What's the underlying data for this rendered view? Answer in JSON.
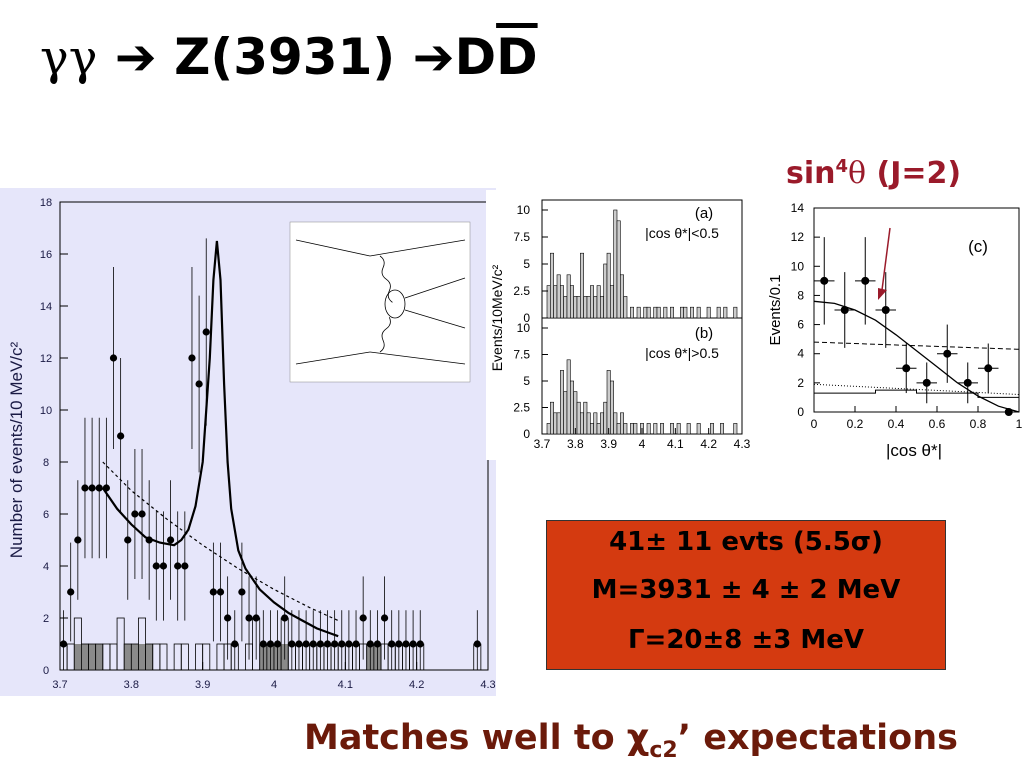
{
  "title": {
    "gg": "γγ",
    "arrow1": "➔",
    "z": "Z(3931)",
    "arrow2": "➔",
    "d": "D",
    "dbar": "D"
  },
  "sin_label": {
    "base": "sin",
    "power": "4",
    "theta": "θ",
    "j": "(J=2)"
  },
  "result": {
    "line1": "41± 11 evts (5.5σ)",
    "line2": "M=3931 ± 4 ± 2 MeV",
    "line3": "Γ=20±8 ±3 MeV"
  },
  "caption": {
    "text": "Matches well to χ",
    "sub": "c2",
    "tail": "’ expectations"
  },
  "colors": {
    "title_red": "#9a1a2a",
    "box": "#d43a10",
    "caption": "#6b1a0a",
    "plot_bg": "#e6e6fa"
  },
  "chart_data": [
    {
      "type": "scatter",
      "ylabel": "Number of events/10 MeV/c²",
      "xlim": [
        3.7,
        4.3
      ],
      "ylim": [
        0,
        18
      ],
      "x_ticks": [
        "3.7",
        "3.8",
        "3.9",
        "4",
        "4.1",
        "4.2",
        "4.3"
      ],
      "y_ticks": [
        "0",
        "2",
        "4",
        "6",
        "8",
        "10",
        "12",
        "14",
        "16",
        "18"
      ],
      "points": {
        "x": [
          3.705,
          3.715,
          3.725,
          3.735,
          3.745,
          3.755,
          3.765,
          3.775,
          3.785,
          3.795,
          3.805,
          3.815,
          3.825,
          3.835,
          3.845,
          3.855,
          3.865,
          3.875,
          3.885,
          3.895,
          3.905,
          3.915,
          3.925,
          3.935,
          3.945,
          3.955,
          3.965,
          3.975,
          3.985,
          3.995,
          4.005,
          4.015,
          4.025,
          4.035,
          4.045,
          4.055,
          4.065,
          4.075,
          4.085,
          4.095,
          4.105,
          4.115,
          4.125,
          4.135,
          4.145,
          4.155,
          4.165,
          4.175,
          4.185,
          4.195,
          4.205,
          4.285
        ],
        "y": [
          1,
          3,
          5,
          7,
          7,
          7,
          7,
          12,
          9,
          5,
          6,
          6,
          5,
          4,
          4,
          5,
          4,
          4,
          12,
          11,
          13,
          3,
          3,
          2,
          1,
          3,
          2,
          2,
          1,
          1,
          1,
          2,
          1,
          1,
          1,
          1,
          1,
          1,
          1,
          1,
          1,
          1,
          2,
          1,
          1,
          2,
          1,
          1,
          1,
          1,
          1,
          1
        ],
        "err": [
          1.3,
          1.9,
          2.3,
          2.7,
          2.7,
          2.7,
          2.7,
          3.5,
          3.0,
          2.3,
          2.5,
          2.5,
          2.3,
          2.1,
          2.1,
          2.3,
          2.1,
          2.1,
          3.5,
          3.4,
          3.6,
          1.9,
          1.9,
          1.6,
          1.3,
          1.9,
          1.6,
          1.6,
          1.3,
          1.3,
          1.3,
          1.6,
          1.3,
          1.3,
          1.3,
          1.3,
          1.3,
          1.3,
          1.3,
          1.3,
          1.3,
          1.3,
          1.6,
          1.3,
          1.3,
          1.6,
          1.3,
          1.3,
          1.3,
          1.3,
          1.3,
          1.3
        ]
      },
      "fit_total": {
        "x": [
          3.76,
          3.78,
          3.8,
          3.82,
          3.84,
          3.86,
          3.87,
          3.88,
          3.89,
          3.9,
          3.91,
          3.915,
          3.92,
          3.925,
          3.93,
          3.935,
          3.94,
          3.95,
          3.96,
          3.98,
          4.0,
          4.02,
          4.04,
          4.06,
          4.08,
          4.09
        ],
        "y": [
          7.0,
          6.2,
          5.6,
          5.1,
          4.9,
          4.8,
          5.0,
          5.4,
          6.3,
          8.0,
          12.0,
          15.0,
          16.5,
          15.0,
          11.0,
          8.0,
          6.2,
          4.6,
          3.9,
          3.1,
          2.6,
          2.2,
          1.9,
          1.6,
          1.4,
          1.3
        ]
      },
      "fit_background": {
        "x": [
          3.76,
          3.8,
          3.85,
          3.9,
          3.95,
          4.0,
          4.05,
          4.09
        ],
        "y": [
          8.0,
          6.9,
          5.8,
          4.8,
          3.9,
          3.1,
          2.4,
          1.9
        ]
      }
    },
    {
      "type": "bar",
      "label": "(a)",
      "cut": "|cos θ*|<0.5",
      "ylabel": "Events/10MeV/c²",
      "xlim": [
        3.7,
        4.3
      ],
      "ylim": [
        0,
        10
      ],
      "y_ticks": [
        "0",
        "2.5",
        "5",
        "7.5",
        "10"
      ],
      "x": [
        3.72,
        3.73,
        3.74,
        3.75,
        3.76,
        3.77,
        3.78,
        3.79,
        3.8,
        3.81,
        3.82,
        3.83,
        3.84,
        3.85,
        3.86,
        3.87,
        3.88,
        3.89,
        3.9,
        3.91,
        3.92,
        3.93,
        3.94,
        3.95,
        3.96,
        3.97,
        3.98,
        3.99,
        4.0,
        4.01,
        4.02,
        4.03,
        4.04,
        4.05,
        4.06,
        4.07,
        4.08,
        4.09,
        4.1,
        4.11,
        4.12,
        4.13,
        4.14,
        4.15,
        4.16,
        4.17,
        4.18,
        4.19,
        4.2,
        4.21,
        4.22,
        4.23,
        4.24,
        4.25,
        4.26,
        4.27,
        4.28,
        4.29
      ],
      "values": [
        3,
        6,
        3,
        4,
        3,
        2,
        4,
        3,
        2,
        2,
        6,
        2,
        2,
        3,
        2,
        3,
        2,
        5,
        6,
        3,
        10,
        9,
        4,
        2,
        0,
        1,
        0,
        1,
        0,
        1,
        1,
        0,
        1,
        1,
        0,
        1,
        0,
        1,
        0,
        0,
        1,
        1,
        0,
        1,
        0,
        1,
        0,
        0,
        1,
        0,
        0,
        1,
        0,
        1,
        0,
        0,
        1,
        0
      ]
    },
    {
      "type": "bar",
      "label": "(b)",
      "cut": "|cos θ*|>0.5",
      "x_ticks": [
        "3.7",
        "3.8",
        "3.9",
        "4",
        "4.1",
        "4.2",
        "4.3"
      ],
      "ylim": [
        0,
        10
      ],
      "y_ticks": [
        "0",
        "2.5",
        "5",
        "7.5",
        "10"
      ],
      "x": [
        3.72,
        3.73,
        3.74,
        3.75,
        3.76,
        3.77,
        3.78,
        3.79,
        3.8,
        3.81,
        3.82,
        3.83,
        3.84,
        3.85,
        3.86,
        3.87,
        3.88,
        3.89,
        3.9,
        3.91,
        3.92,
        3.93,
        3.94,
        3.95,
        3.96,
        3.97,
        3.98,
        3.99,
        4.0,
        4.01,
        4.02,
        4.03,
        4.04,
        4.05,
        4.06,
        4.07,
        4.08,
        4.09,
        4.1,
        4.11,
        4.12,
        4.13,
        4.14,
        4.15,
        4.16,
        4.17,
        4.18,
        4.19,
        4.2,
        4.21,
        4.22,
        4.23,
        4.24,
        4.25,
        4.26,
        4.27,
        4.28,
        4.29
      ],
      "values": [
        1,
        3,
        2,
        2,
        6,
        4,
        7,
        5,
        4,
        3,
        2,
        3,
        2,
        1,
        2,
        1,
        2,
        3,
        6,
        5,
        2,
        1,
        2,
        1,
        0,
        1,
        1,
        0,
        1,
        0,
        1,
        0,
        1,
        0,
        1,
        0,
        0,
        1,
        0,
        1,
        0,
        0,
        1,
        0,
        0,
        1,
        0,
        0,
        0,
        1,
        0,
        0,
        1,
        0,
        0,
        0,
        1,
        0
      ]
    },
    {
      "type": "scatter",
      "label": "(c)",
      "xlabel": "|cos θ*|",
      "ylabel": "Events/0.1",
      "xlim": [
        0,
        1
      ],
      "ylim": [
        0,
        14
      ],
      "x_ticks": [
        "0",
        "0.2",
        "0.4",
        "0.6",
        "0.8",
        "1"
      ],
      "y_ticks": [
        "0",
        "2",
        "4",
        "6",
        "8",
        "10",
        "12",
        "14"
      ],
      "points": {
        "x": [
          0.05,
          0.15,
          0.25,
          0.35,
          0.45,
          0.55,
          0.65,
          0.75,
          0.85,
          0.95
        ],
        "y": [
          9,
          7,
          9,
          7,
          3,
          2,
          4,
          2,
          3,
          0
        ],
        "err": [
          3.0,
          2.6,
          3.0,
          2.6,
          1.7,
          1.4,
          2.0,
          1.4,
          1.7,
          0
        ]
      },
      "sin4_curve": {
        "x": [
          0,
          0.1,
          0.2,
          0.3,
          0.4,
          0.5,
          0.6,
          0.7,
          0.8,
          0.9,
          1.0
        ],
        "y": [
          7.6,
          7.45,
          7.0,
          6.3,
          5.3,
          4.2,
          3.1,
          2.0,
          1.1,
          0.4,
          0.0
        ]
      },
      "flat_curve": {
        "x": [
          0,
          1
        ],
        "y": [
          4.8,
          4.3
        ]
      },
      "background_dotted": {
        "x": [
          0,
          1
        ],
        "y": [
          1.9,
          1.2
        ]
      },
      "background_hist": {
        "x": [
          0.05,
          0.15,
          0.25,
          0.35,
          0.45,
          0.55,
          0.65,
          0.75,
          0.85,
          0.95
        ],
        "values": [
          1.3,
          1.3,
          1.3,
          1.5,
          1.5,
          1.3,
          1.3,
          1.3,
          1.0,
          1.0
        ]
      }
    }
  ]
}
